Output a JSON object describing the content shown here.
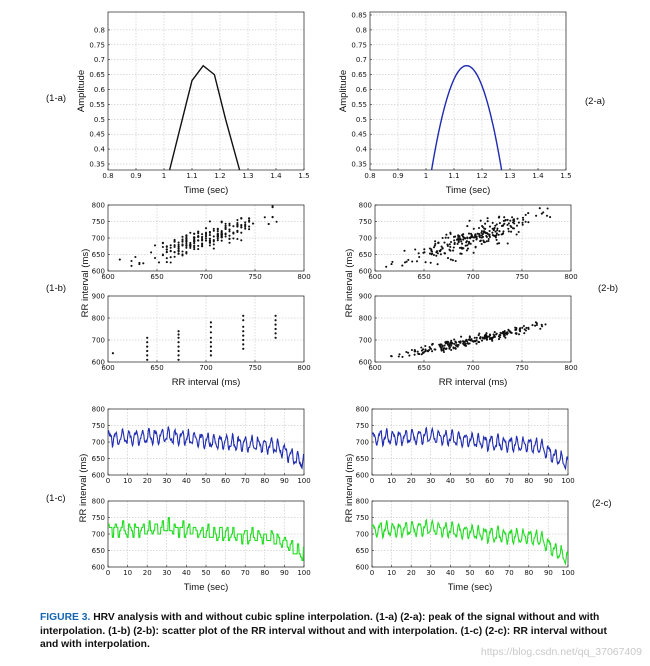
{
  "panel_labels": [
    "(1-a)",
    "(2-a)",
    "(1-b)",
    "(2-b)",
    "(1-c)",
    "(2-c)"
  ],
  "caption": {
    "label": "FIGURE 3.",
    "text": "HRV analysis with and without cubic spline interpolation. (1-a) (2-a): peak of the signal without and with interpolation. (1-b) (2-b): scatter plot of the RR interval without and with interpolation. (1-c) (2-c): RR interval without and with interpolation."
  },
  "watermark": "https://blog.csdn.net/qq_37067409",
  "colors": {
    "black": "#111111",
    "blue": "#1f2bb0",
    "green": "#22dd22"
  },
  "chart_data": [
    {
      "id": "1a",
      "type": "line",
      "xlabel": "Time (sec)",
      "ylabel": "Amplitude",
      "xlim": [
        0.8,
        1.5
      ],
      "ylim": [
        0.33,
        0.86
      ],
      "xticks": [
        "0.8",
        "0.9",
        "1",
        "1.1",
        "1.2",
        "1.3",
        "1.4",
        "1.5"
      ],
      "yticks": [
        "0.35",
        "0.4",
        "0.45",
        "0.5",
        "0.55",
        "0.6",
        "0.65",
        "0.7",
        "0.75",
        "0.8"
      ],
      "series": [
        {
          "color": "#111111",
          "x": [
            1.02,
            1.06,
            1.1,
            1.14,
            1.18,
            1.22,
            1.27
          ],
          "y": [
            0.33,
            0.48,
            0.63,
            0.68,
            0.65,
            0.5,
            0.33
          ]
        }
      ]
    },
    {
      "id": "2a",
      "type": "line",
      "xlabel": "Time (sec)",
      "ylabel": "Amplitude",
      "xlim": [
        0.8,
        1.5
      ],
      "ylim": [
        0.33,
        0.86
      ],
      "xticks": [
        "0.8",
        "0.9",
        "1",
        "1.1",
        "1.2",
        "1.3",
        "1.4",
        "1.5"
      ],
      "yticks": [
        "0.35",
        "0.4",
        "0.45",
        "0.5",
        "0.55",
        "0.6",
        "0.65",
        "0.7",
        "0.75",
        "0.8",
        "0.85"
      ],
      "series": [
        {
          "color": "#1f2bb0",
          "peak_x": 1.145,
          "peak_y": 0.68,
          "x_start": 1.02,
          "x_end": 1.27,
          "y_end": 0.33
        }
      ]
    },
    {
      "id": "1b-top",
      "type": "scatter",
      "seed": 11,
      "xlim": [
        600,
        800
      ],
      "ylim": [
        600,
        800
      ],
      "xticks": [
        "600",
        "650",
        "700",
        "750",
        "800"
      ],
      "yticks": [
        "600",
        "650",
        "700",
        "750",
        "800"
      ],
      "points_spec": {
        "count": 240,
        "x_mean": 698,
        "x_sd": 30,
        "slope": 0.93,
        "noise": 17,
        "quantized": true
      }
    },
    {
      "id": "1b-bottom",
      "type": "scatter",
      "xlim": [
        600,
        800
      ],
      "ylim": [
        600,
        900
      ],
      "xticks": [
        "600",
        "650",
        "700",
        "750",
        "800"
      ],
      "yticks": [
        "600",
        "700",
        "800",
        "900"
      ],
      "xlabel": "RR interval (ms)",
      "columns": [
        {
          "x": 605,
          "y": [
            640
          ]
        },
        {
          "x": 640,
          "y": [
            610,
            630,
            650,
            670,
            690,
            710
          ]
        },
        {
          "x": 672,
          "y": [
            610,
            630,
            650,
            670,
            690,
            710,
            725,
            740
          ]
        },
        {
          "x": 705,
          "y": [
            630,
            650,
            670,
            690,
            710,
            735,
            760,
            780
          ]
        },
        {
          "x": 738,
          "y": [
            660,
            680,
            700,
            720,
            740,
            760,
            790,
            810
          ]
        },
        {
          "x": 771,
          "y": [
            710,
            730,
            750,
            770,
            790,
            810
          ]
        }
      ]
    },
    {
      "id": "2b-top",
      "type": "scatter",
      "seed": 23,
      "xlim": [
        600,
        800
      ],
      "ylim": [
        600,
        800
      ],
      "xticks": [
        "600",
        "650",
        "700",
        "750",
        "800"
      ],
      "yticks": [
        "600",
        "650",
        "700",
        "750",
        "800"
      ],
      "points_spec": {
        "count": 260,
        "x_mean": 698,
        "x_sd": 32,
        "slope": 0.93,
        "noise": 18,
        "quantized": false
      }
    },
    {
      "id": "2b-bottom",
      "type": "scatter",
      "seed": 37,
      "xlim": [
        600,
        800
      ],
      "ylim": [
        600,
        900
      ],
      "xticks": [
        "600",
        "650",
        "700",
        "750",
        "800"
      ],
      "yticks": [
        "600",
        "700",
        "800",
        "900"
      ],
      "xlabel": "RR interval (ms)",
      "points_spec": {
        "count": 240,
        "x_mean": 695,
        "x_sd": 33,
        "slope": 0.95,
        "noise": 11,
        "quantized": false
      }
    },
    {
      "id": "1c-top",
      "type": "line",
      "seed": 5,
      "xlim": [
        0,
        100
      ],
      "ylim": [
        600,
        800
      ],
      "xticks": [
        "0",
        "10",
        "20",
        "30",
        "40",
        "50",
        "60",
        "70",
        "80",
        "90",
        "100"
      ],
      "yticks": [
        "600",
        "650",
        "700",
        "750",
        "800"
      ],
      "series": [
        {
          "color": "#1f2bb0",
          "base": 705,
          "trend": [
            [
              0,
              712
            ],
            [
              30,
              718
            ],
            [
              60,
              698
            ],
            [
              85,
              688
            ],
            [
              100,
              636
            ]
          ]
        }
      ]
    },
    {
      "id": "1c-bottom",
      "type": "line",
      "seed": 5,
      "xlim": [
        0,
        100
      ],
      "ylim": [
        600,
        800
      ],
      "xticks": [
        "0",
        "10",
        "20",
        "30",
        "40",
        "50",
        "60",
        "70",
        "80",
        "90",
        "100"
      ],
      "yticks": [
        "600",
        "650",
        "700",
        "750",
        "800"
      ],
      "xlabel": "Time (sec)",
      "step": true,
      "series": [
        {
          "color": "#22dd22",
          "base": 705,
          "trend": [
            [
              0,
              712
            ],
            [
              30,
              718
            ],
            [
              60,
              698
            ],
            [
              85,
              688
            ],
            [
              100,
              636
            ]
          ]
        }
      ]
    },
    {
      "id": "2c-top",
      "type": "line",
      "seed": 9,
      "xlim": [
        0,
        100
      ],
      "ylim": [
        600,
        800
      ],
      "xticks": [
        "0",
        "10",
        "20",
        "30",
        "40",
        "50",
        "60",
        "70",
        "80",
        "90",
        "100"
      ],
      "yticks": [
        "600",
        "650",
        "700",
        "750",
        "800"
      ],
      "series": [
        {
          "color": "#1f2bb0",
          "base": 705,
          "trend": [
            [
              0,
              712
            ],
            [
              30,
              718
            ],
            [
              60,
              698
            ],
            [
              85,
              688
            ],
            [
              100,
              632
            ]
          ]
        }
      ]
    },
    {
      "id": "2c-bottom",
      "type": "line",
      "seed": 9,
      "xlim": [
        0,
        100
      ],
      "ylim": [
        600,
        800
      ],
      "xticks": [
        "0",
        "10",
        "20",
        "30",
        "40",
        "50",
        "60",
        "70",
        "80",
        "90",
        "100"
      ],
      "yticks": [
        "600",
        "650",
        "700",
        "750",
        "800"
      ],
      "xlabel": "Time (sec)",
      "series": [
        {
          "color": "#22dd22",
          "base": 705,
          "trend": [
            [
              0,
              712
            ],
            [
              30,
              718
            ],
            [
              60,
              698
            ],
            [
              85,
              688
            ],
            [
              100,
              622
            ]
          ]
        }
      ]
    }
  ],
  "shared_labels": {
    "rr_interval_ms": "RR interval (ms)",
    "rr_interval_spaced": "RR interval (ms)"
  }
}
